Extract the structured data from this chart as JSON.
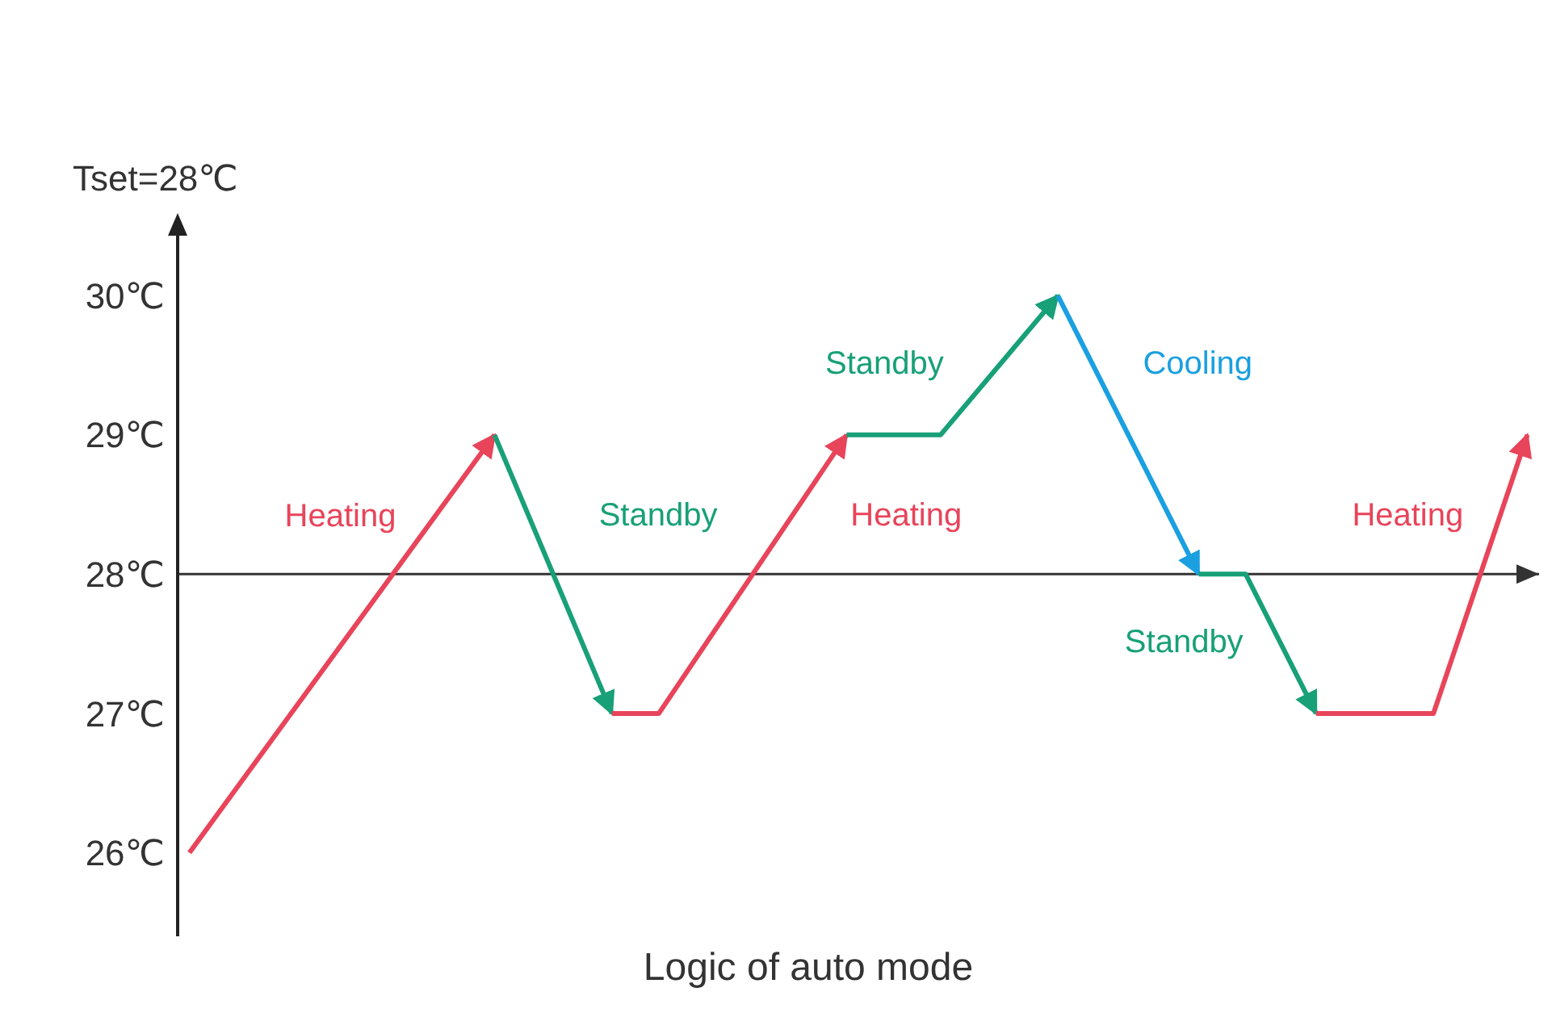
{
  "chart_data": {
    "type": "line",
    "title": "Logic of auto mode",
    "ylabel": "Tset=28℃",
    "categories": [
      null,
      null,
      null,
      null,
      null,
      null,
      null,
      null,
      null,
      null,
      null,
      null,
      null,
      null,
      null,
      null,
      null,
      null,
      null,
      null,
      null,
      null,
      null,
      null,
      null,
      null,
      null,
      null,
      null,
      null,
      null,
      null,
      null,
      null,
      null,
      null,
      null,
      null,
      null,
      null,
      null,
      null,
      null,
      null,
      null,
      null,
      null,
      null,
      null,
      null,
      null,
      null,
      null,
      null,
      null,
      null,
      null,
      null
    ],
    "ylim": [
      25.4,
      30.5
    ],
    "yticks": [
      {
        "value": 26,
        "label": "26℃"
      },
      {
        "value": 27,
        "label": "27℃"
      },
      {
        "value": 28,
        "label": "28℃"
      },
      {
        "value": 29,
        "label": "29℃"
      },
      {
        "value": 30,
        "label": "30℃"
      }
    ],
    "tick_labels": "y",
    "line_style": "solid",
    "ref_lines": [
      {
        "axis": "y",
        "value": 28,
        "color": "#333333"
      }
    ],
    "series": [
      {
        "name": "Heating",
        "color": "#e8445a",
        "values": [
          26,
          null,
          null,
          null,
          null,
          null,
          null,
          null,
          null,
          null,
          null,
          null,
          null,
          29,
          null,
          null,
          null,
          null,
          null,
          null,
          null,
          null,
          null,
          null,
          null,
          null,
          null,
          null,
          null,
          null,
          null,
          null,
          null,
          null,
          null,
          null,
          null,
          null,
          null,
          null,
          null,
          null,
          null,
          null,
          null,
          null,
          null,
          null,
          null,
          null,
          null,
          null,
          null,
          null,
          null,
          null,
          null,
          null
        ]
      },
      {
        "name": "Standby",
        "color": "#18a078",
        "values": [
          null,
          null,
          null,
          null,
          null,
          null,
          null,
          null,
          null,
          null,
          null,
          null,
          null,
          29,
          null,
          null,
          null,
          null,
          27,
          null,
          null,
          null,
          null,
          null,
          null,
          null,
          null,
          null,
          null,
          null,
          null,
          null,
          null,
          null,
          null,
          null,
          null,
          null,
          null,
          null,
          null,
          null,
          null,
          null,
          null,
          null,
          null,
          null,
          null,
          null,
          null,
          null,
          null,
          null,
          null,
          null,
          null,
          null
        ]
      },
      {
        "name": "Heating",
        "color": "#e8445a",
        "values": [
          null,
          null,
          null,
          null,
          null,
          null,
          null,
          null,
          null,
          null,
          null,
          null,
          null,
          null,
          null,
          null,
          null,
          null,
          27,
          null,
          27,
          null,
          null,
          null,
          null,
          null,
          null,
          null,
          29,
          null,
          null,
          null,
          null,
          null,
          null,
          null,
          null,
          null,
          null,
          null,
          null,
          null,
          null,
          null,
          null,
          null,
          null,
          null,
          null,
          null,
          null,
          null,
          null,
          null,
          null,
          null,
          null,
          null
        ]
      },
      {
        "name": "Standby",
        "color": "#18a078",
        "values": [
          null,
          null,
          null,
          null,
          null,
          null,
          null,
          null,
          null,
          null,
          null,
          null,
          null,
          null,
          null,
          null,
          null,
          null,
          null,
          null,
          null,
          null,
          null,
          null,
          null,
          null,
          null,
          null,
          29,
          null,
          null,
          null,
          29,
          null,
          null,
          null,
          null,
          30,
          null,
          null,
          null,
          null,
          null,
          null,
          null,
          null,
          null,
          null,
          null,
          null,
          null,
          null,
          null,
          null,
          null,
          null,
          null,
          null
        ]
      },
      {
        "name": "Cooling",
        "color": "#1aa0e0",
        "values": [
          null,
          null,
          null,
          null,
          null,
          null,
          null,
          null,
          null,
          null,
          null,
          null,
          null,
          null,
          null,
          null,
          null,
          null,
          null,
          null,
          null,
          null,
          null,
          null,
          null,
          null,
          null,
          null,
          null,
          null,
          null,
          null,
          null,
          null,
          null,
          null,
          null,
          30,
          null,
          null,
          null,
          null,
          null,
          28,
          null,
          null,
          null,
          null,
          null,
          null,
          null,
          null,
          null,
          null,
          null,
          null,
          null,
          null
        ]
      },
      {
        "name": "Standby",
        "color": "#18a078",
        "values": [
          null,
          null,
          null,
          null,
          null,
          null,
          null,
          null,
          null,
          null,
          null,
          null,
          null,
          null,
          null,
          null,
          null,
          null,
          null,
          null,
          null,
          null,
          null,
          null,
          null,
          null,
          null,
          null,
          null,
          null,
          null,
          null,
          null,
          null,
          null,
          null,
          null,
          null,
          null,
          null,
          null,
          null,
          null,
          28,
          null,
          28,
          null,
          null,
          27,
          null,
          null,
          null,
          null,
          null,
          null,
          null,
          null,
          null
        ]
      },
      {
        "name": "Heating",
        "color": "#e8445a",
        "values": [
          null,
          null,
          null,
          null,
          null,
          null,
          null,
          null,
          null,
          null,
          null,
          null,
          null,
          null,
          null,
          null,
          null,
          null,
          null,
          null,
          null,
          null,
          null,
          null,
          null,
          null,
          null,
          null,
          null,
          null,
          null,
          null,
          null,
          null,
          null,
          null,
          null,
          null,
          null,
          null,
          null,
          null,
          null,
          null,
          null,
          null,
          null,
          null,
          27,
          null,
          null,
          null,
          null,
          27,
          null,
          null,
          null,
          29
        ]
      }
    ]
  }
}
